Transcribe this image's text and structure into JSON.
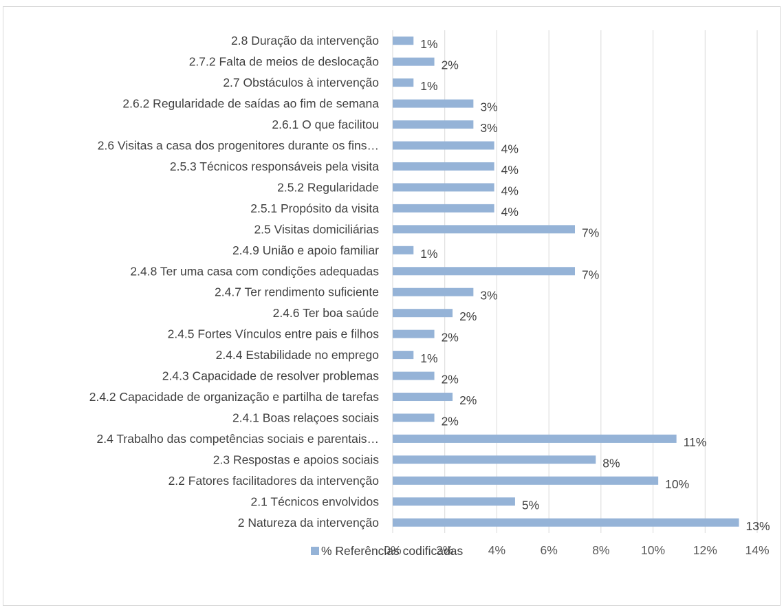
{
  "chart_data": {
    "type": "bar",
    "orientation": "horizontal",
    "categories": [
      "2 Natureza da intervenção",
      "2.1 Técnicos envolvidos",
      "2.2 Fatores facilitadores da intervenção",
      "2.3 Respostas e apoios sociais",
      "2.4 Trabalho das competências sociais e parentais…",
      "2.4.1 Boas relaçoes sociais",
      "2.4.2 Capacidade de organização e partilha de tarefas",
      "2.4.3 Capacidade de resolver problemas",
      "2.4.4 Estabilidade no emprego",
      "2.4.5 Fortes Vínculos entre pais e filhos",
      "2.4.6 Ter boa saúde",
      "2.4.7 Ter rendimento suficiente",
      "2.4.8 Ter uma casa com condições adequadas",
      "2.4.9 União e apoio familiar",
      "2.5 Visitas domiciliárias",
      "2.5.1 Propósito da visita",
      "2.5.2 Regularidade",
      "2.5.3 Técnicos responsáveis pela visita",
      "2.6 Visitas a casa dos progenitores durante os fins…",
      "2.6.1 O que facilitou",
      "2.6.2 Regularidade de saídas ao fim de semana",
      "2.7 Obstáculos à intervenção",
      "2.7.2 Falta de meios de deslocação",
      "2.8 Duração da intervenção"
    ],
    "series": [
      {
        "name": "% Referências codificadas",
        "values": [
          13.3,
          4.7,
          10.2,
          7.8,
          10.9,
          1.6,
          2.3,
          1.6,
          0.8,
          1.6,
          2.3,
          3.1,
          7.0,
          0.8,
          7.0,
          3.9,
          3.9,
          3.9,
          3.9,
          3.1,
          3.1,
          0.8,
          1.6,
          0.8
        ],
        "labels": [
          "13%",
          "5%",
          "10%",
          "8%",
          "11%",
          "2%",
          "2%",
          "2%",
          "1%",
          "2%",
          "2%",
          "3%",
          "7%",
          "1%",
          "7%",
          "4%",
          "4%",
          "4%",
          "4%",
          "3%",
          "3%",
          "1%",
          "2%",
          "1%"
        ],
        "color": "#95b3d7"
      }
    ],
    "xlim": [
      0,
      14
    ],
    "xticks": [
      "0%",
      "2%",
      "4%",
      "6%",
      "8%",
      "10%",
      "12%",
      "14%"
    ],
    "grid": true,
    "legend_position": "bottom",
    "gridline_color": "#d9d9d9"
  }
}
